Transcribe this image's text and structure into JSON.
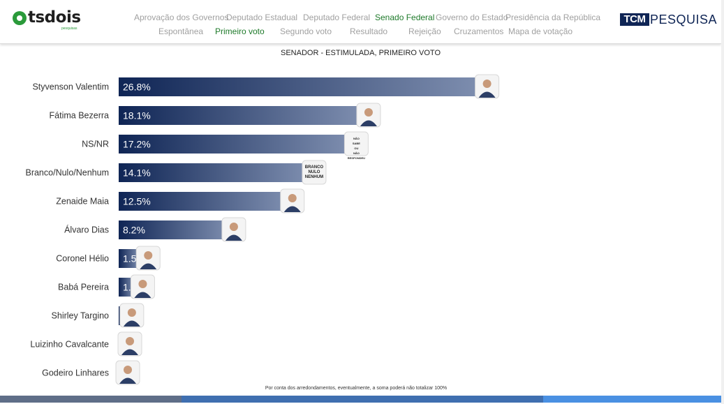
{
  "header": {
    "logo_text": "tsdois",
    "logo_sub": "pesquisas",
    "brand_box": "TCM",
    "brand_rest": "PESQUISA",
    "nav_row1": [
      {
        "label": "Aprovação dos Governos",
        "active": false
      },
      {
        "label": "Deputado Estadual",
        "active": false
      },
      {
        "label": "Deputado Federal",
        "active": false
      },
      {
        "label": "Senado Federal",
        "active": true
      },
      {
        "label": "Governo do Estado",
        "active": false
      },
      {
        "label": "Presidência da República",
        "active": false
      }
    ],
    "nav_row2": [
      {
        "label": "Espontânea",
        "active": false
      },
      {
        "label": "Primeiro voto",
        "active": true
      },
      {
        "label": "Segundo voto",
        "active": false
      },
      {
        "label": "Resultado",
        "active": false
      },
      {
        "label": "Rejeição",
        "active": false
      },
      {
        "label": "Cruzamentos",
        "active": false
      },
      {
        "label": "Mapa de votação",
        "active": false
      }
    ]
  },
  "footnote": "Por conta dos arredondamentos, eventualmente, a soma poderá não totalizar 100%",
  "colors": {
    "bar_start": "#0f2555",
    "bar_end": "#7f8fb0",
    "active_nav": "#1e7a2a",
    "bottom_bar": [
      "#5f6e88",
      "#3f6fb0",
      "#4a90e2"
    ]
  },
  "chart_data": {
    "type": "bar",
    "orientation": "horizontal",
    "title": "SENADOR - ESTIMULADA, PRIMEIRO VOTO",
    "categories": [
      "Styvenson Valentim",
      "Fátima Bezerra",
      "NS/NR",
      "Branco/Nulo/Nenhum",
      "Zenaide Maia",
      "Álvaro Dias",
      "Coronel Hélio",
      "Babá Pereira",
      "Shirley Targino",
      "Luizinho Cavalcante",
      "Godeiro Linhares"
    ],
    "values": [
      26.8,
      18.1,
      17.2,
      14.1,
      12.5,
      8.2,
      1.5,
      1.1,
      0.3,
      0.1,
      0.0
    ],
    "data_labels": [
      "26.8%",
      "18.1%",
      "17.2%",
      "14.1%",
      "12.5%",
      "8.2%",
      "1.5%",
      "1.1%",
      "",
      "",
      ""
    ],
    "badges": [
      {
        "kind": "photo",
        "text": ""
      },
      {
        "kind": "photo",
        "text": ""
      },
      {
        "kind": "text",
        "text": "NÃO SABE OU NÃO RESPONDEU"
      },
      {
        "kind": "text",
        "text": "BRANCO NULO NENHUM"
      },
      {
        "kind": "photo",
        "text": ""
      },
      {
        "kind": "photo",
        "text": ""
      },
      {
        "kind": "photo",
        "text": ""
      },
      {
        "kind": "photo",
        "text": ""
      },
      {
        "kind": "photo",
        "text": ""
      },
      {
        "kind": "photo",
        "text": ""
      },
      {
        "kind": "photo",
        "text": ""
      }
    ],
    "xlim": [
      0,
      28
    ],
    "grid": false,
    "legend": "none"
  }
}
